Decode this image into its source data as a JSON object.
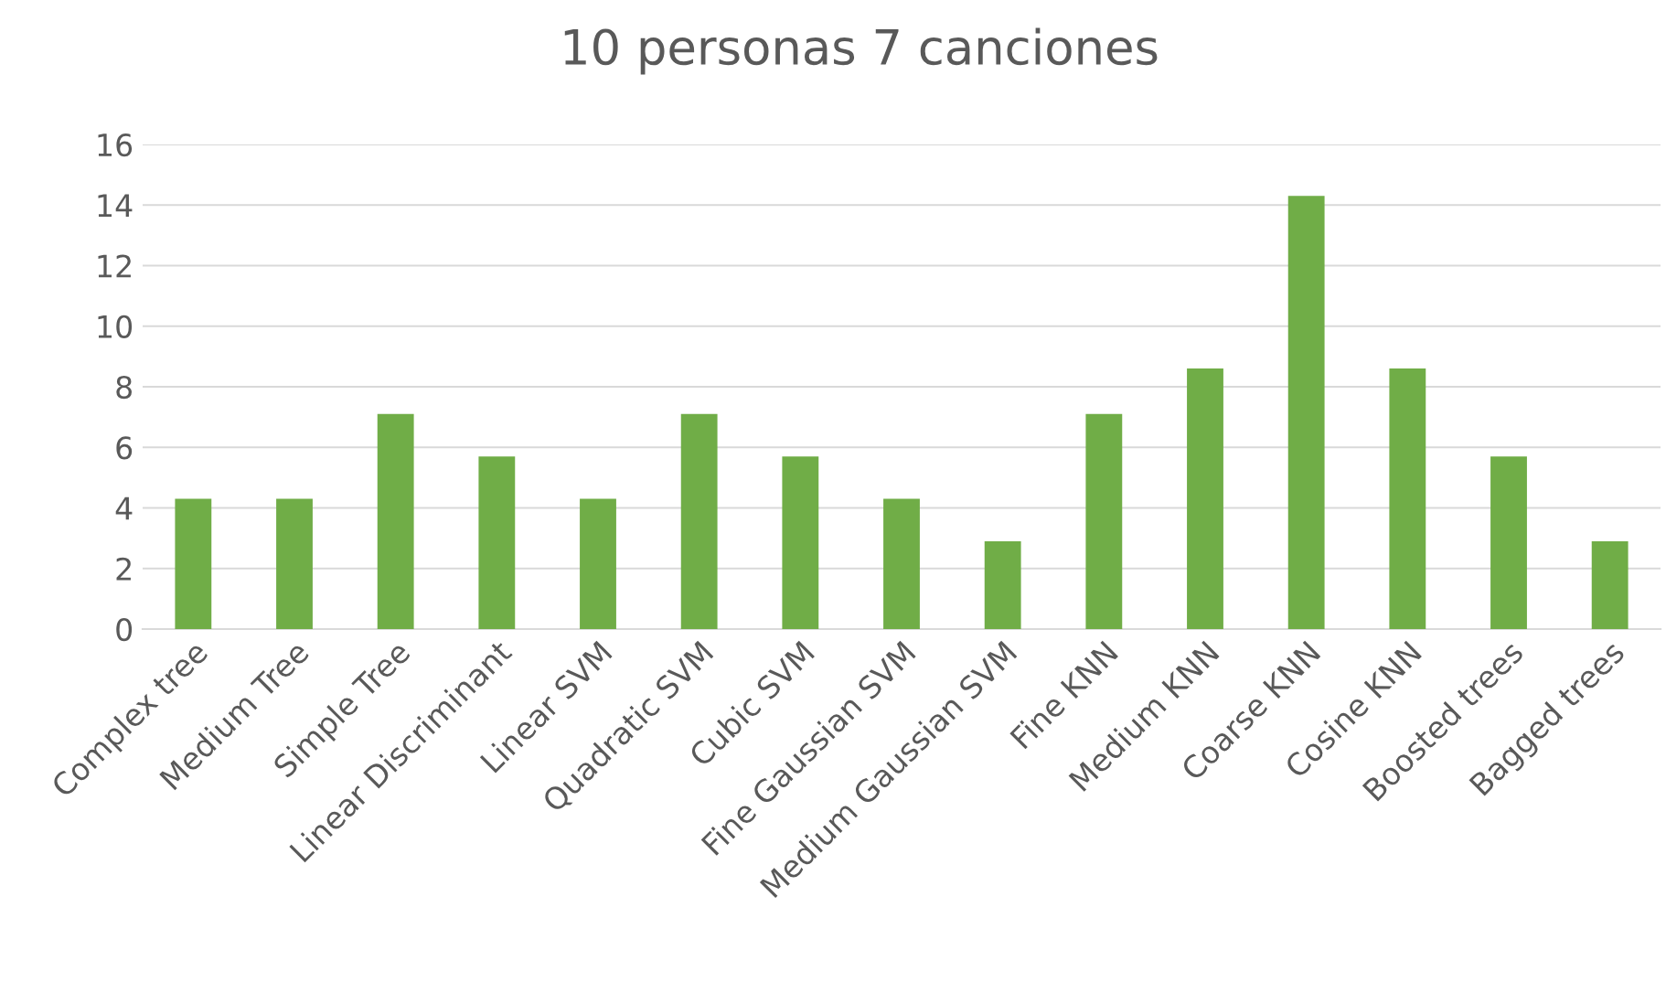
{
  "chart_data": {
    "type": "bar",
    "title": "10 personas 7 canciones",
    "categories": [
      "Complex tree",
      "Medium Tree",
      "Simple Tree",
      "Linear Discriminant",
      "Linear SVM",
      "Quadratic SVM",
      "Cubic SVM",
      "Fine Gaussian SVM",
      "Medium Gaussian SVM",
      "Fine KNN",
      "Medium KNN",
      "Coarse KNN",
      "Cosine KNN",
      "Boosted trees",
      "Bagged trees"
    ],
    "values": [
      4.3,
      4.3,
      7.1,
      5.7,
      4.3,
      7.1,
      5.7,
      4.3,
      2.9,
      7.1,
      8.6,
      14.3,
      8.6,
      5.7,
      2.9
    ],
    "color": "#70ad47",
    "ylim": [
      0,
      16
    ],
    "yticks": [
      0,
      2,
      4,
      6,
      8,
      10,
      12,
      14,
      16
    ],
    "grid": "y",
    "legend": false
  }
}
